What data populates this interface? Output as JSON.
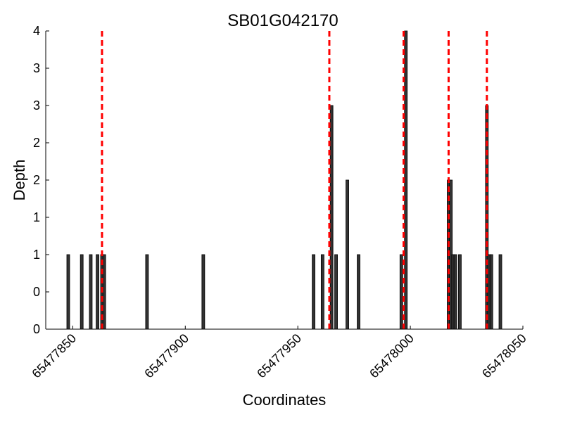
{
  "chart_data": {
    "type": "bar",
    "title": "SB01G042170",
    "xlabel": "Coordinates",
    "ylabel": "Depth",
    "xlim": [
      65477838,
      65478050
    ],
    "ylim": [
      0,
      4
    ],
    "x_ticks": [
      65477850,
      65477900,
      65477950,
      65478000,
      65478050
    ],
    "y_tick_labels": [
      "0",
      "0",
      "1",
      "1",
      "2",
      "2",
      "3",
      "3",
      "4"
    ],
    "bar_color": "#333333",
    "bar_edge_color": "#000000",
    "marker_color": "#ff0000",
    "series": [
      {
        "name": "depth",
        "x": [
          65477848,
          65477854,
          65477858,
          65477861,
          65477863,
          65477864,
          65477883,
          65477908,
          65477957,
          65477961,
          65477965,
          65477967,
          65477972,
          65477977,
          65477996,
          65477998,
          65478017,
          65478018,
          65478019,
          65478020,
          65478022,
          65478034,
          65478035,
          65478036,
          65478040
        ],
        "values": [
          1,
          1,
          1,
          1,
          1,
          1,
          1,
          1,
          1,
          1,
          3,
          1,
          2,
          1,
          1,
          4,
          2,
          2,
          1,
          1,
          1,
          3,
          1,
          1,
          1
        ]
      }
    ],
    "markers": [
      65477863,
      65477964,
      65477997,
      65478017,
      65478034
    ]
  }
}
